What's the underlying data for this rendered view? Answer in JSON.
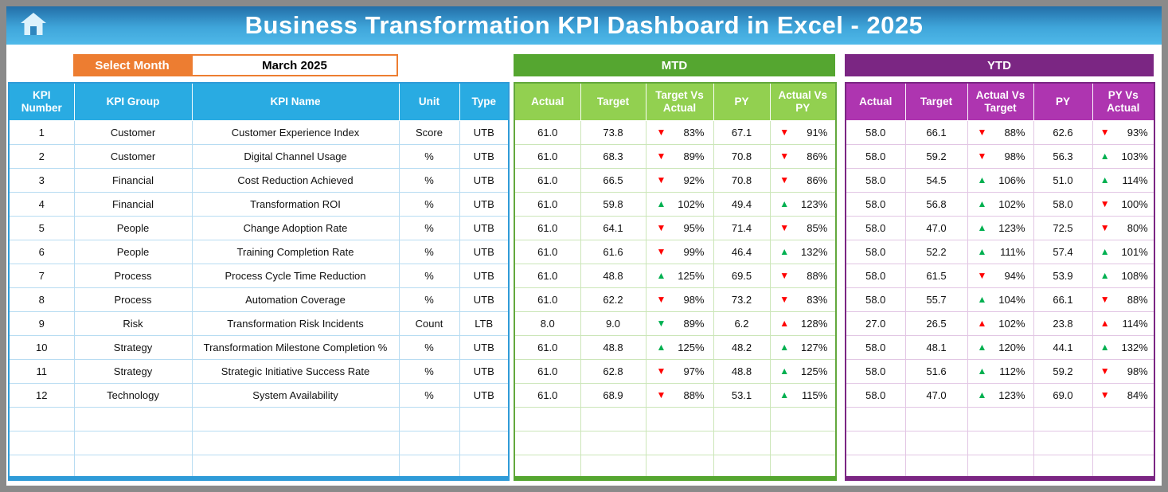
{
  "banner": {
    "title": "Business Transformation KPI Dashboard in Excel - 2025"
  },
  "controls": {
    "select_month_label": "Select Month",
    "selected_month": "March 2025"
  },
  "sections": {
    "mtd": "MTD",
    "ytd": "YTD"
  },
  "colors": {
    "banner_blue_top": "#236FA8",
    "banner_blue_bottom": "#4FB9E9",
    "header_blue": "#29ABE2",
    "accent_orange": "#ED7D31",
    "mtd_green_dark": "#55A630",
    "mtd_green_light": "#92D050",
    "ytd_purple_dark": "#7B2683",
    "ytd_purple_light": "#AE35B0",
    "trend_up_green": "#00B050",
    "trend_down_red": "#FF0000"
  },
  "table": {
    "info_headers": [
      "KPI Number",
      "KPI Group",
      "KPI Name",
      "Unit",
      "Type"
    ],
    "mtd_headers": [
      "Actual",
      "Target",
      "Target Vs Actual",
      "PY",
      "Actual Vs PY"
    ],
    "ytd_headers": [
      "Actual",
      "Target",
      "Actual Vs Target",
      "PY",
      "PY Vs Actual"
    ],
    "empty_rows": 3,
    "rows": [
      {
        "kpi_number": "1",
        "kpi_group": "Customer",
        "kpi_name": "Customer Experience Index",
        "unit": "Score",
        "type": "UTB",
        "mtd": {
          "actual": "61.0",
          "target": "73.8",
          "target_vs_actual": {
            "dir": "down",
            "color": "red",
            "value": "83%"
          },
          "py": "67.1",
          "actual_vs_py": {
            "dir": "down",
            "color": "red",
            "value": "91%"
          }
        },
        "ytd": {
          "actual": "58.0",
          "target": "66.1",
          "actual_vs_target": {
            "dir": "down",
            "color": "red",
            "value": "88%"
          },
          "py": "62.6",
          "py_vs_actual": {
            "dir": "down",
            "color": "red",
            "value": "93%"
          }
        }
      },
      {
        "kpi_number": "2",
        "kpi_group": "Customer",
        "kpi_name": "Digital Channel Usage",
        "unit": "%",
        "type": "UTB",
        "mtd": {
          "actual": "61.0",
          "target": "68.3",
          "target_vs_actual": {
            "dir": "down",
            "color": "red",
            "value": "89%"
          },
          "py": "70.8",
          "actual_vs_py": {
            "dir": "down",
            "color": "red",
            "value": "86%"
          }
        },
        "ytd": {
          "actual": "58.0",
          "target": "59.2",
          "actual_vs_target": {
            "dir": "down",
            "color": "red",
            "value": "98%"
          },
          "py": "56.3",
          "py_vs_actual": {
            "dir": "up",
            "color": "green",
            "value": "103%"
          }
        }
      },
      {
        "kpi_number": "3",
        "kpi_group": "Financial",
        "kpi_name": "Cost Reduction Achieved",
        "unit": "%",
        "type": "UTB",
        "mtd": {
          "actual": "61.0",
          "target": "66.5",
          "target_vs_actual": {
            "dir": "down",
            "color": "red",
            "value": "92%"
          },
          "py": "70.8",
          "actual_vs_py": {
            "dir": "down",
            "color": "red",
            "value": "86%"
          }
        },
        "ytd": {
          "actual": "58.0",
          "target": "54.5",
          "actual_vs_target": {
            "dir": "up",
            "color": "green",
            "value": "106%"
          },
          "py": "51.0",
          "py_vs_actual": {
            "dir": "up",
            "color": "green",
            "value": "114%"
          }
        }
      },
      {
        "kpi_number": "4",
        "kpi_group": "Financial",
        "kpi_name": "Transformation ROI",
        "unit": "%",
        "type": "UTB",
        "mtd": {
          "actual": "61.0",
          "target": "59.8",
          "target_vs_actual": {
            "dir": "up",
            "color": "green",
            "value": "102%"
          },
          "py": "49.4",
          "actual_vs_py": {
            "dir": "up",
            "color": "green",
            "value": "123%"
          }
        },
        "ytd": {
          "actual": "58.0",
          "target": "56.8",
          "actual_vs_target": {
            "dir": "up",
            "color": "green",
            "value": "102%"
          },
          "py": "58.0",
          "py_vs_actual": {
            "dir": "down",
            "color": "red",
            "value": "100%"
          }
        }
      },
      {
        "kpi_number": "5",
        "kpi_group": "People",
        "kpi_name": "Change Adoption Rate",
        "unit": "%",
        "type": "UTB",
        "mtd": {
          "actual": "61.0",
          "target": "64.1",
          "target_vs_actual": {
            "dir": "down",
            "color": "red",
            "value": "95%"
          },
          "py": "71.4",
          "actual_vs_py": {
            "dir": "down",
            "color": "red",
            "value": "85%"
          }
        },
        "ytd": {
          "actual": "58.0",
          "target": "47.0",
          "actual_vs_target": {
            "dir": "up",
            "color": "green",
            "value": "123%"
          },
          "py": "72.5",
          "py_vs_actual": {
            "dir": "down",
            "color": "red",
            "value": "80%"
          }
        }
      },
      {
        "kpi_number": "6",
        "kpi_group": "People",
        "kpi_name": "Training Completion Rate",
        "unit": "%",
        "type": "UTB",
        "mtd": {
          "actual": "61.0",
          "target": "61.6",
          "target_vs_actual": {
            "dir": "down",
            "color": "red",
            "value": "99%"
          },
          "py": "46.4",
          "actual_vs_py": {
            "dir": "up",
            "color": "green",
            "value": "132%"
          }
        },
        "ytd": {
          "actual": "58.0",
          "target": "52.2",
          "actual_vs_target": {
            "dir": "up",
            "color": "green",
            "value": "111%"
          },
          "py": "57.4",
          "py_vs_actual": {
            "dir": "up",
            "color": "green",
            "value": "101%"
          }
        }
      },
      {
        "kpi_number": "7",
        "kpi_group": "Process",
        "kpi_name": "Process Cycle Time Reduction",
        "unit": "%",
        "type": "UTB",
        "mtd": {
          "actual": "61.0",
          "target": "48.8",
          "target_vs_actual": {
            "dir": "up",
            "color": "green",
            "value": "125%"
          },
          "py": "69.5",
          "actual_vs_py": {
            "dir": "down",
            "color": "red",
            "value": "88%"
          }
        },
        "ytd": {
          "actual": "58.0",
          "target": "61.5",
          "actual_vs_target": {
            "dir": "down",
            "color": "red",
            "value": "94%"
          },
          "py": "53.9",
          "py_vs_actual": {
            "dir": "up",
            "color": "green",
            "value": "108%"
          }
        }
      },
      {
        "kpi_number": "8",
        "kpi_group": "Process",
        "kpi_name": "Automation Coverage",
        "unit": "%",
        "type": "UTB",
        "mtd": {
          "actual": "61.0",
          "target": "62.2",
          "target_vs_actual": {
            "dir": "down",
            "color": "red",
            "value": "98%"
          },
          "py": "73.2",
          "actual_vs_py": {
            "dir": "down",
            "color": "red",
            "value": "83%"
          }
        },
        "ytd": {
          "actual": "58.0",
          "target": "55.7",
          "actual_vs_target": {
            "dir": "up",
            "color": "green",
            "value": "104%"
          },
          "py": "66.1",
          "py_vs_actual": {
            "dir": "down",
            "color": "red",
            "value": "88%"
          }
        }
      },
      {
        "kpi_number": "9",
        "kpi_group": "Risk",
        "kpi_name": "Transformation Risk Incidents",
        "unit": "Count",
        "type": "LTB",
        "mtd": {
          "actual": "8.0",
          "target": "9.0",
          "target_vs_actual": {
            "dir": "down",
            "color": "green",
            "value": "89%"
          },
          "py": "6.2",
          "actual_vs_py": {
            "dir": "up",
            "color": "red",
            "value": "128%"
          }
        },
        "ytd": {
          "actual": "27.0",
          "target": "26.5",
          "actual_vs_target": {
            "dir": "up",
            "color": "red",
            "value": "102%"
          },
          "py": "23.8",
          "py_vs_actual": {
            "dir": "up",
            "color": "red",
            "value": "114%"
          }
        }
      },
      {
        "kpi_number": "10",
        "kpi_group": "Strategy",
        "kpi_name": "Transformation Milestone Completion %",
        "unit": "%",
        "type": "UTB",
        "mtd": {
          "actual": "61.0",
          "target": "48.8",
          "target_vs_actual": {
            "dir": "up",
            "color": "green",
            "value": "125%"
          },
          "py": "48.2",
          "actual_vs_py": {
            "dir": "up",
            "color": "green",
            "value": "127%"
          }
        },
        "ytd": {
          "actual": "58.0",
          "target": "48.1",
          "actual_vs_target": {
            "dir": "up",
            "color": "green",
            "value": "120%"
          },
          "py": "44.1",
          "py_vs_actual": {
            "dir": "up",
            "color": "green",
            "value": "132%"
          }
        }
      },
      {
        "kpi_number": "11",
        "kpi_group": "Strategy",
        "kpi_name": "Strategic Initiative Success Rate",
        "unit": "%",
        "type": "UTB",
        "mtd": {
          "actual": "61.0",
          "target": "62.8",
          "target_vs_actual": {
            "dir": "down",
            "color": "red",
            "value": "97%"
          },
          "py": "48.8",
          "actual_vs_py": {
            "dir": "up",
            "color": "green",
            "value": "125%"
          }
        },
        "ytd": {
          "actual": "58.0",
          "target": "51.6",
          "actual_vs_target": {
            "dir": "up",
            "color": "green",
            "value": "112%"
          },
          "py": "59.2",
          "py_vs_actual": {
            "dir": "down",
            "color": "red",
            "value": "98%"
          }
        }
      },
      {
        "kpi_number": "12",
        "kpi_group": "Technology",
        "kpi_name": "System Availability",
        "unit": "%",
        "type": "UTB",
        "mtd": {
          "actual": "61.0",
          "target": "68.9",
          "target_vs_actual": {
            "dir": "down",
            "color": "red",
            "value": "88%"
          },
          "py": "53.1",
          "actual_vs_py": {
            "dir": "up",
            "color": "green",
            "value": "115%"
          }
        },
        "ytd": {
          "actual": "58.0",
          "target": "47.0",
          "actual_vs_target": {
            "dir": "up",
            "color": "green",
            "value": "123%"
          },
          "py": "69.0",
          "py_vs_actual": {
            "dir": "down",
            "color": "red",
            "value": "84%"
          }
        }
      }
    ]
  }
}
